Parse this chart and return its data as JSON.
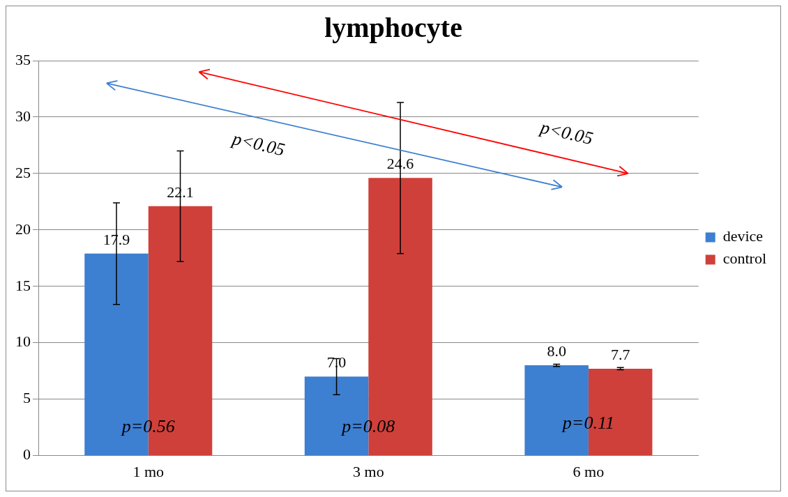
{
  "chart_data": {
    "type": "bar",
    "title": "lymphocyte",
    "categories": [
      "1 mo",
      "3 mo",
      "6 mo"
    ],
    "series": [
      {
        "name": "device",
        "color": "#3d7fd0",
        "values": [
          17.9,
          7.0,
          8.0
        ],
        "value_labels": [
          "17.9",
          "7.0",
          "8.0"
        ],
        "errors": [
          4.5,
          1.6,
          0.1
        ]
      },
      {
        "name": "control",
        "color": "#d0403a",
        "values": [
          22.1,
          24.6,
          7.7
        ],
        "value_labels": [
          "22.1",
          "24.6",
          "7.7"
        ],
        "errors": [
          4.9,
          6.7,
          0.1
        ]
      }
    ],
    "ylim": [
      0,
      35
    ],
    "yticks": [
      0,
      5,
      10,
      15,
      20,
      25,
      30,
      35
    ],
    "grid": "y",
    "legend": "right",
    "annotations": [
      {
        "text": "p=0.56",
        "x": "1 mo",
        "y": 2.5
      },
      {
        "text": "p=0.08",
        "x": "3 mo",
        "y": 2.5
      },
      {
        "text": "p=0.11",
        "x": "6 mo",
        "y": 2.8
      },
      "p<0.05",
      "p<0.05"
    ]
  }
}
